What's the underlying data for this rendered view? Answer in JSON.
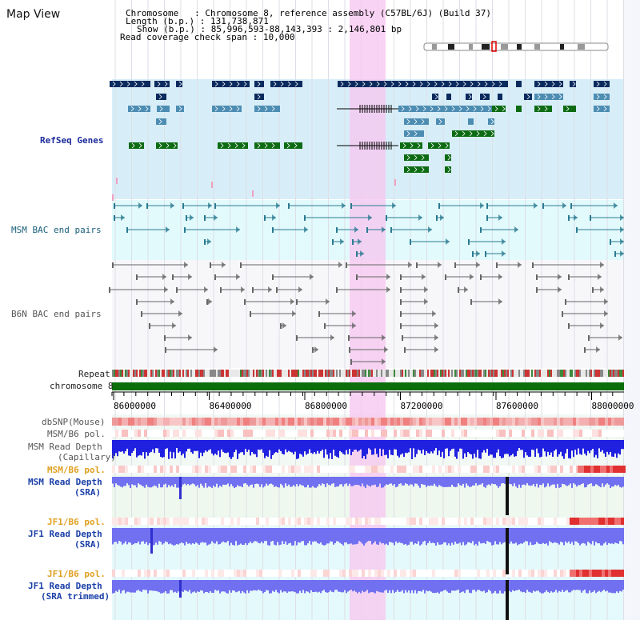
{
  "page": {
    "title": "Map View"
  },
  "info": {
    "chromosome_label": "Chromosome",
    "chromosome_value": "Chromosome 8, reference assembly (C57BL/6J) (Build 37)",
    "length_label": "Length (b.p.)",
    "length_value": "131,738,871",
    "show_label": "Show (b.p.)",
    "show_value": "85,996,593-88,143,393 : 2,146,801 bp",
    "span_label": "Read coverage check span",
    "span_value": "10,000"
  },
  "tracks": {
    "refseq": "RefSeq Genes",
    "msm_bac": "MSM BAC end pairs",
    "b6n_bac": "B6N BAC end pairs",
    "repeat": "Repeat",
    "chromosome": "chromosome 8",
    "dbsnp": "dbSNP(Mouse)",
    "msm_b6_pol_1": "MSM/B6 pol.",
    "msm_depth_cap_1": "MSM Read Depth",
    "msm_depth_cap_2": "(Capillary)",
    "msm_b6_pol_2": "MSM/B6 pol.",
    "msm_depth_sra_1": "MSM Read Depth",
    "msm_depth_sra_2": "(SRA)",
    "jf1_b6_pol_1": "JF1/B6 pol.",
    "jf1_depth_sra_1": "JF1 Read Depth",
    "jf1_depth_sra_2": "(SRA)",
    "jf1_b6_pol_2": "JF1/B6 pol.",
    "jf1_depth_trim_1": "JF1 Read Depth",
    "jf1_depth_trim_2": "(SRA trimmed)"
  },
  "axis": {
    "ticks": [
      "86000000",
      "86400000",
      "86800000",
      "87200000",
      "87600000",
      "88000000"
    ]
  },
  "colors": {
    "refseq_bg": "#d7eef8",
    "msm_bg": "#e2fafc",
    "highlight": "#f6c8f0",
    "gene_navy": "#0b2a5e",
    "gene_steel": "#4d8db2",
    "gene_green": "#0d6b14",
    "chromosome_bar": "#0b6e0b",
    "capillary": "#2020e0",
    "sra_depth": "#7070f0"
  }
}
